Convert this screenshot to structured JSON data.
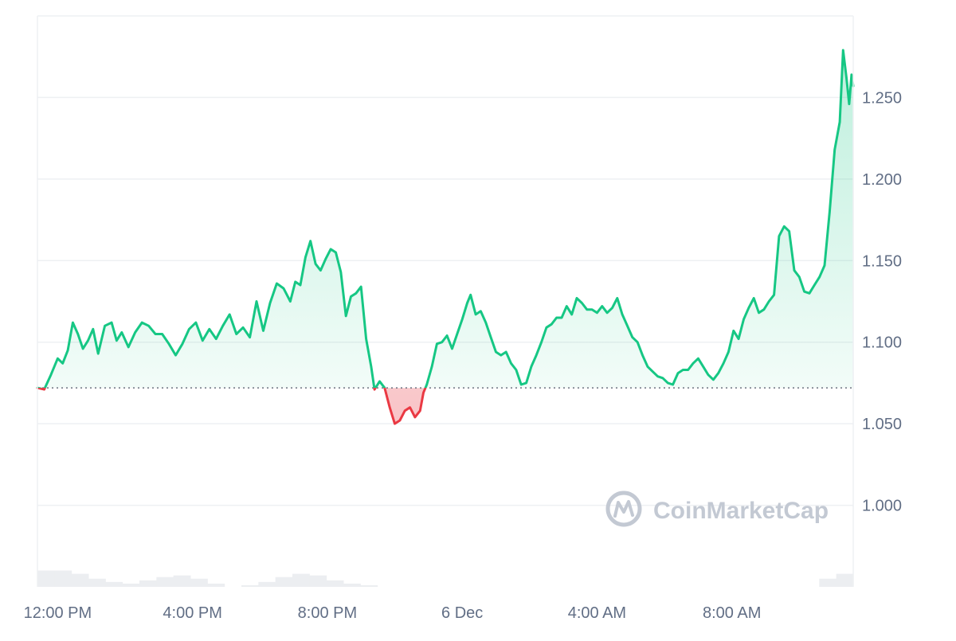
{
  "chart_data": {
    "type": "area",
    "x_tick_labels": [
      "12:00 PM",
      "4:00 PM",
      "8:00 PM",
      "6 Dec",
      "4:00 AM",
      "8:00 AM"
    ],
    "y_tick_labels": [
      "1.000",
      "1.050",
      "1.100",
      "1.150",
      "1.200",
      "1.250"
    ],
    "y_ticks": [
      1.0,
      1.05,
      1.1,
      1.15,
      1.2,
      1.25
    ],
    "ylim": [
      0.95,
      1.3
    ],
    "xlim_hours": [
      11.4,
      35.6
    ],
    "x_tick_hours": [
      12,
      16,
      20,
      24,
      28,
      32
    ],
    "reference_value": 1.072,
    "price_points": [
      [
        11.4,
        1.072
      ],
      [
        11.6,
        1.071
      ],
      [
        11.8,
        1.08
      ],
      [
        12.0,
        1.09
      ],
      [
        12.15,
        1.087
      ],
      [
        12.3,
        1.095
      ],
      [
        12.45,
        1.112
      ],
      [
        12.6,
        1.105
      ],
      [
        12.75,
        1.096
      ],
      [
        12.9,
        1.101
      ],
      [
        13.05,
        1.108
      ],
      [
        13.2,
        1.093
      ],
      [
        13.4,
        1.11
      ],
      [
        13.6,
        1.112
      ],
      [
        13.75,
        1.101
      ],
      [
        13.9,
        1.106
      ],
      [
        14.1,
        1.097
      ],
      [
        14.3,
        1.106
      ],
      [
        14.5,
        1.112
      ],
      [
        14.7,
        1.11
      ],
      [
        14.9,
        1.105
      ],
      [
        15.1,
        1.105
      ],
      [
        15.3,
        1.099
      ],
      [
        15.5,
        1.092
      ],
      [
        15.7,
        1.099
      ],
      [
        15.9,
        1.108
      ],
      [
        16.1,
        1.112
      ],
      [
        16.3,
        1.101
      ],
      [
        16.5,
        1.108
      ],
      [
        16.7,
        1.102
      ],
      [
        16.9,
        1.11
      ],
      [
        17.1,
        1.117
      ],
      [
        17.3,
        1.105
      ],
      [
        17.5,
        1.109
      ],
      [
        17.7,
        1.103
      ],
      [
        17.9,
        1.125
      ],
      [
        18.1,
        1.107
      ],
      [
        18.3,
        1.124
      ],
      [
        18.5,
        1.136
      ],
      [
        18.7,
        1.133
      ],
      [
        18.9,
        1.125
      ],
      [
        19.05,
        1.137
      ],
      [
        19.2,
        1.135
      ],
      [
        19.35,
        1.152
      ],
      [
        19.5,
        1.162
      ],
      [
        19.65,
        1.148
      ],
      [
        19.8,
        1.144
      ],
      [
        19.95,
        1.151
      ],
      [
        20.1,
        1.157
      ],
      [
        20.25,
        1.155
      ],
      [
        20.4,
        1.143
      ],
      [
        20.55,
        1.116
      ],
      [
        20.7,
        1.128
      ],
      [
        20.85,
        1.13
      ],
      [
        21.0,
        1.134
      ],
      [
        21.15,
        1.102
      ],
      [
        21.3,
        1.085
      ],
      [
        21.4,
        1.071
      ],
      [
        21.55,
        1.076
      ],
      [
        21.7,
        1.072
      ],
      [
        21.85,
        1.06
      ],
      [
        22.0,
        1.05
      ],
      [
        22.15,
        1.052
      ],
      [
        22.3,
        1.058
      ],
      [
        22.45,
        1.06
      ],
      [
        22.6,
        1.054
      ],
      [
        22.75,
        1.058
      ],
      [
        22.85,
        1.069
      ],
      [
        22.95,
        1.074
      ],
      [
        23.1,
        1.085
      ],
      [
        23.25,
        1.099
      ],
      [
        23.4,
        1.1
      ],
      [
        23.55,
        1.104
      ],
      [
        23.7,
        1.096
      ],
      [
        23.85,
        1.105
      ],
      [
        24.0,
        1.114
      ],
      [
        24.15,
        1.124
      ],
      [
        24.25,
        1.129
      ],
      [
        24.4,
        1.117
      ],
      [
        24.55,
        1.119
      ],
      [
        24.7,
        1.112
      ],
      [
        24.85,
        1.103
      ],
      [
        25.0,
        1.094
      ],
      [
        25.15,
        1.092
      ],
      [
        25.3,
        1.094
      ],
      [
        25.45,
        1.087
      ],
      [
        25.6,
        1.083
      ],
      [
        25.75,
        1.074
      ],
      [
        25.9,
        1.075
      ],
      [
        26.05,
        1.085
      ],
      [
        26.2,
        1.092
      ],
      [
        26.35,
        1.1
      ],
      [
        26.5,
        1.109
      ],
      [
        26.65,
        1.111
      ],
      [
        26.8,
        1.115
      ],
      [
        26.95,
        1.115
      ],
      [
        27.1,
        1.122
      ],
      [
        27.25,
        1.117
      ],
      [
        27.4,
        1.127
      ],
      [
        27.55,
        1.124
      ],
      [
        27.7,
        1.12
      ],
      [
        27.85,
        1.12
      ],
      [
        28.0,
        1.118
      ],
      [
        28.15,
        1.122
      ],
      [
        28.3,
        1.118
      ],
      [
        28.45,
        1.121
      ],
      [
        28.6,
        1.127
      ],
      [
        28.75,
        1.117
      ],
      [
        28.9,
        1.11
      ],
      [
        29.05,
        1.103
      ],
      [
        29.2,
        1.1
      ],
      [
        29.35,
        1.092
      ],
      [
        29.5,
        1.085
      ],
      [
        29.65,
        1.082
      ],
      [
        29.8,
        1.079
      ],
      [
        29.95,
        1.078
      ],
      [
        30.1,
        1.075
      ],
      [
        30.25,
        1.074
      ],
      [
        30.4,
        1.081
      ],
      [
        30.55,
        1.083
      ],
      [
        30.7,
        1.083
      ],
      [
        30.85,
        1.087
      ],
      [
        31.0,
        1.09
      ],
      [
        31.15,
        1.085
      ],
      [
        31.3,
        1.08
      ],
      [
        31.45,
        1.077
      ],
      [
        31.6,
        1.081
      ],
      [
        31.75,
        1.087
      ],
      [
        31.9,
        1.094
      ],
      [
        32.05,
        1.107
      ],
      [
        32.2,
        1.102
      ],
      [
        32.35,
        1.114
      ],
      [
        32.5,
        1.121
      ],
      [
        32.65,
        1.127
      ],
      [
        32.8,
        1.118
      ],
      [
        32.95,
        1.12
      ],
      [
        33.1,
        1.125
      ],
      [
        33.25,
        1.129
      ],
      [
        33.4,
        1.165
      ],
      [
        33.55,
        1.171
      ],
      [
        33.7,
        1.168
      ],
      [
        33.85,
        1.144
      ],
      [
        34.0,
        1.14
      ],
      [
        34.15,
        1.131
      ],
      [
        34.3,
        1.13
      ],
      [
        34.45,
        1.135
      ],
      [
        34.6,
        1.14
      ],
      [
        34.75,
        1.147
      ],
      [
        34.9,
        1.18
      ],
      [
        35.05,
        1.218
      ],
      [
        35.2,
        1.235
      ],
      [
        35.3,
        1.279
      ],
      [
        35.4,
        1.262
      ],
      [
        35.48,
        1.246
      ],
      [
        35.55,
        1.264
      ],
      [
        35.6,
        1.257
      ]
    ],
    "volume_bars": [
      0.96,
      0.96,
      0.958,
      0.955,
      0.953,
      0.952,
      0.954,
      0.956,
      0.957,
      0.955,
      0.952,
      0.95,
      0.951,
      0.953,
      0.956,
      0.958,
      0.957,
      0.954,
      0.952,
      0.951,
      0.949,
      0.947,
      0.946,
      0.948,
      0.95,
      0.95,
      0.949,
      0.947,
      0.944,
      0.941,
      0.938,
      0.936,
      0.936,
      0.937,
      0.937,
      0.936,
      0.935,
      0.935,
      0.936,
      0.936,
      0.936,
      0.937,
      0.938,
      0.94,
      0.945,
      0.95,
      0.955,
      0.958
    ],
    "colors": {
      "up_line": "#16c784",
      "down_line": "#ea3943",
      "up_fill": "#16c784",
      "down_fill": "#ea3943",
      "volume": "#eceef1",
      "grid": "#eef0f3",
      "axis_text": "#616e85"
    }
  },
  "watermark": {
    "text": "CoinMarketCap",
    "icon": "coinmarketcap-logo-icon"
  }
}
